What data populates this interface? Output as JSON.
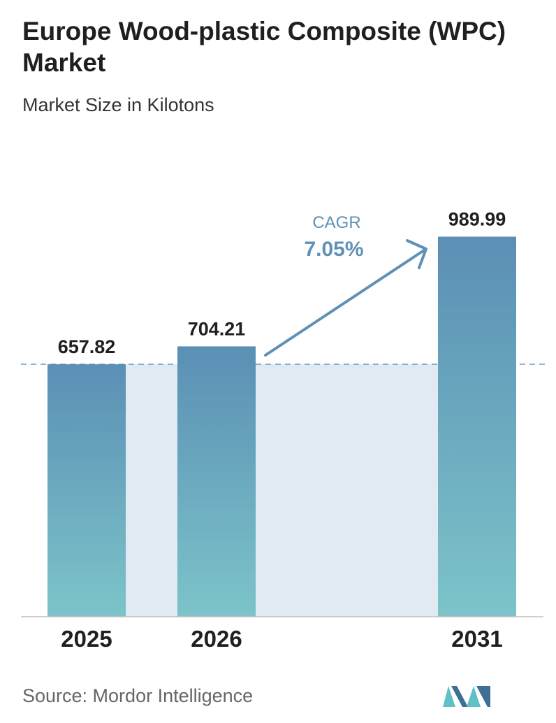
{
  "title": "Europe Wood-plastic Composite (WPC) Market",
  "subtitle": "Market Size in Kilotons",
  "source": "Source:  Mordor Intelligence",
  "cagr": {
    "label": "CAGR",
    "value": "7.05%"
  },
  "colors": {
    "bar_top": "#5b8fb5",
    "bar_bottom": "#7cc4c9",
    "band": "#e1e9f2",
    "accent": "#5f91b6",
    "text": "#1f1f1f",
    "logo_dark": "#3e6f95",
    "logo_light": "#5fc0c6"
  },
  "chart_data": {
    "type": "bar",
    "categories": [
      "2025",
      "2026",
      "2031"
    ],
    "values": [
      657.82,
      704.21,
      989.99
    ],
    "value_labels": [
      "657.82",
      "704.21",
      "989.99"
    ],
    "title": "Europe Wood-plastic Composite (WPC) Market",
    "subtitle": "Market Size in Kilotons",
    "xlabel": "",
    "ylabel": "",
    "ylim": [
      0,
      1000
    ],
    "grid": false,
    "legend": "none",
    "reference_line": 657.82
  }
}
